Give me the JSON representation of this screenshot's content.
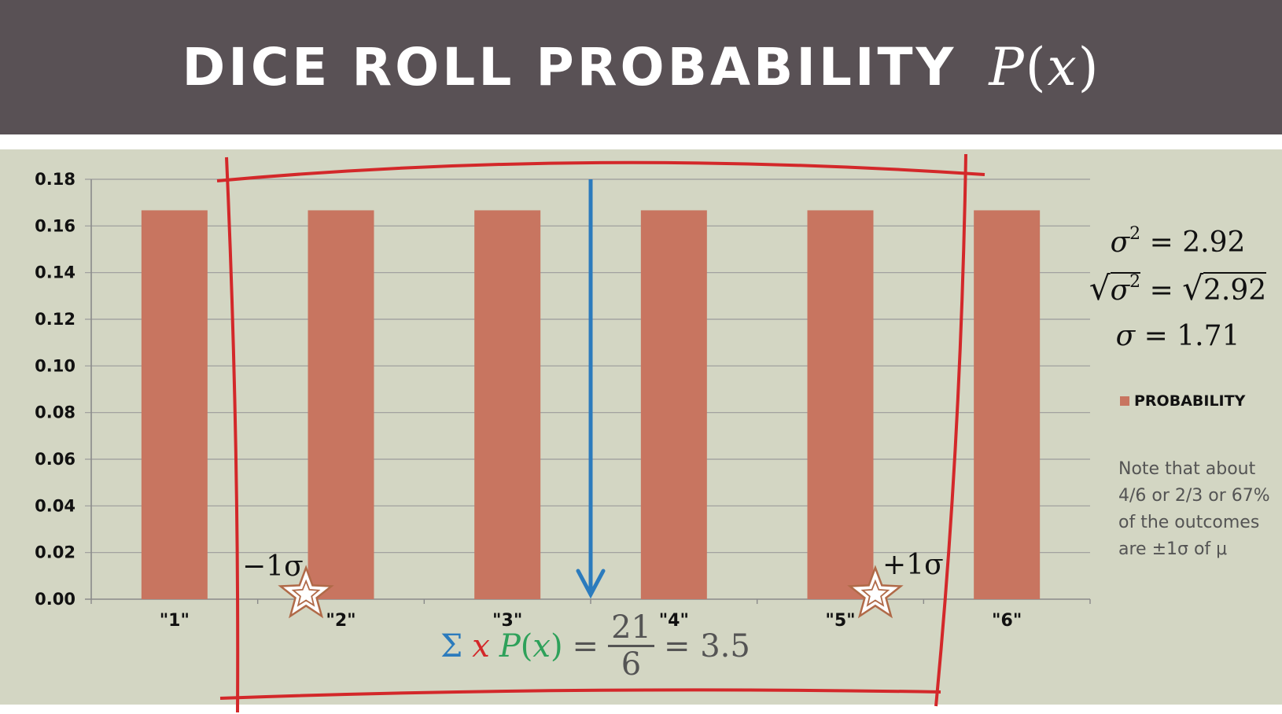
{
  "title": {
    "text": "DICE ROLL PROBABILITY",
    "math": "P(x)",
    "math_var": "P",
    "math_arg": "x"
  },
  "chart_data": {
    "type": "bar",
    "categories": [
      "\"1\"",
      "\"2\"",
      "\"3\"",
      "\"4\"",
      "\"5\"",
      "\"6\""
    ],
    "series": [
      {
        "name": "PROBABILITY",
        "values": [
          0.1667,
          0.1667,
          0.1667,
          0.1667,
          0.1667,
          0.1667
        ]
      }
    ],
    "ylim": [
      0,
      0.18
    ],
    "yticks": [
      "0.00",
      "0.02",
      "0.04",
      "0.06",
      "0.08",
      "0.10",
      "0.12",
      "0.14",
      "0.16",
      "0.18"
    ],
    "grid": true,
    "legend_position": "right",
    "bar_color": "#c87560",
    "mean": 3.5,
    "sigma": 1.71
  },
  "annotations": {
    "variance": {
      "line1": "σ² = 2.92",
      "line2": "√σ² = √2.92",
      "line3": "σ = 1.71"
    },
    "note": "Note that about 4/6 or 2/3 or 67% of the outcomes are ±1σ of μ",
    "minus_sigma": "−1σ",
    "plus_sigma": "+1σ",
    "formula": {
      "sigma_sym": "Σ",
      "x_sym": "x",
      "px": "P(x)",
      "equals": "=",
      "numerator": "21",
      "denominator": "6",
      "result": "= 3.5"
    }
  },
  "colors": {
    "title_bar": "#595155",
    "panel": "#d3d6c3",
    "bars": "#c87560",
    "mean_arrow": "#2b7bbd",
    "frame": "#d3282a"
  }
}
